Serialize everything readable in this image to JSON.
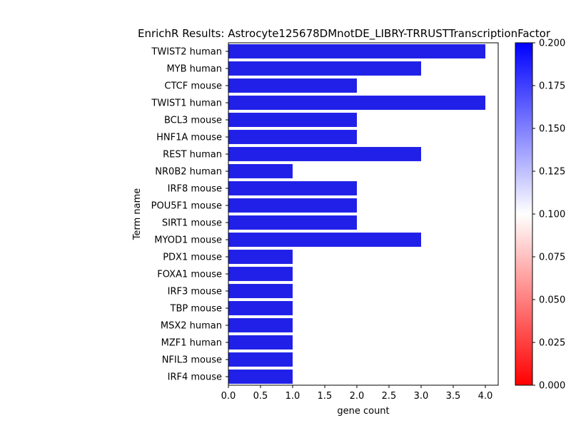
{
  "chart_data": {
    "type": "bar",
    "orientation": "horizontal",
    "title": "EnrichR Results: Astrocyte125678DMnotDE_LIBRY-TRRUSTTranscriptionFactor",
    "xlabel": "gene count",
    "ylabel": "Term name",
    "categories": [
      "TWIST2 human",
      "MYB human",
      "CTCF mouse",
      "TWIST1 human",
      "BCL3 mouse",
      "HNF1A mouse",
      "REST human",
      "NR0B2 human",
      "IRF8 mouse",
      "POU5F1 mouse",
      "SIRT1 mouse",
      "MYOD1 mouse",
      "PDX1 mouse",
      "FOXA1 mouse",
      "IRF3 mouse",
      "TBP mouse",
      "MSX2 human",
      "MZF1 human",
      "NFIL3 mouse",
      "IRF4 mouse"
    ],
    "values": [
      4,
      3,
      2,
      4,
      2,
      2,
      3,
      1,
      2,
      2,
      2,
      3,
      1,
      1,
      1,
      1,
      1,
      1,
      1,
      1
    ],
    "xlim": [
      0,
      4.2
    ],
    "xticks": [
      "0.0",
      "0.5",
      "1.0",
      "1.5",
      "2.0",
      "2.5",
      "3.0",
      "3.5",
      "4.0"
    ],
    "bar_color": "#2020e8",
    "grid": false,
    "colorbar": {
      "range": [
        0.0,
        0.2
      ],
      "ticks": [
        "0.000",
        "0.025",
        "0.050",
        "0.075",
        "0.100",
        "0.125",
        "0.150",
        "0.175",
        "0.200"
      ],
      "colors": [
        "#ff0000",
        "#ffffff",
        "#0000ff"
      ]
    }
  }
}
